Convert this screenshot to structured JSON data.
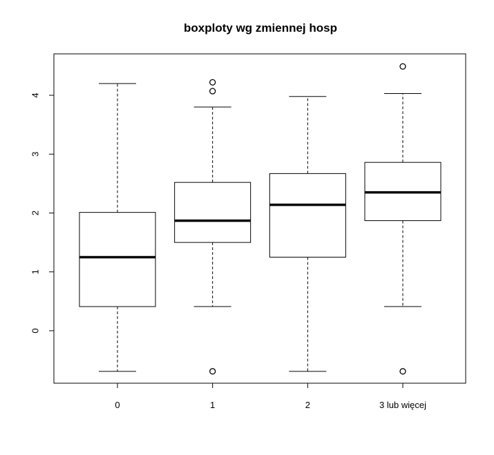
{
  "chart_data": {
    "type": "box",
    "title": "boxploty wg zmiennej hosp",
    "xlabel": "",
    "ylabel": "",
    "categories": [
      "0",
      "1",
      "2",
      "3 lub więcej"
    ],
    "boxes": [
      {
        "category": "0",
        "lower_whisker": -0.69,
        "q1": 0.41,
        "median": 1.25,
        "q3": 2.01,
        "upper_whisker": 4.2,
        "outliers": []
      },
      {
        "category": "1",
        "lower_whisker": 0.41,
        "q1": 1.5,
        "median": 1.87,
        "q3": 2.52,
        "upper_whisker": 3.8,
        "outliers": [
          -0.69,
          4.07,
          4.22
        ]
      },
      {
        "category": "2",
        "lower_whisker": -0.69,
        "q1": 1.25,
        "median": 2.14,
        "q3": 2.67,
        "upper_whisker": 3.98,
        "outliers": []
      },
      {
        "category": "3 lub więcej",
        "lower_whisker": 0.41,
        "q1": 1.87,
        "median": 2.35,
        "q3": 2.86,
        "upper_whisker": 4.03,
        "outliers": [
          -0.69,
          4.49
        ]
      }
    ],
    "y_ticks": [
      0,
      1,
      2,
      3,
      4
    ],
    "ylim": [
      -0.9,
      4.7
    ],
    "grid": false,
    "legend": "none"
  }
}
